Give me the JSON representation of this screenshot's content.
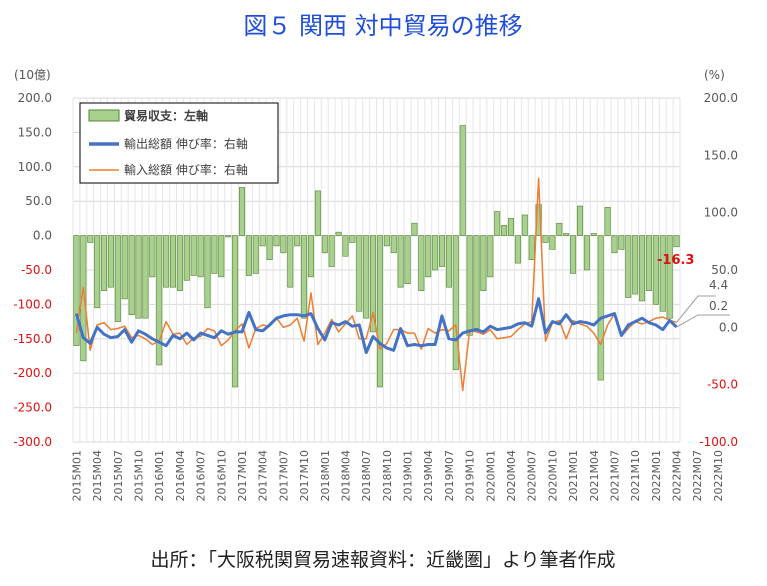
{
  "title": "図５ 関西 対中貿易の推移",
  "source": "出所：「大阪税関貿易速報資料：近畿圏」より筆者作成",
  "colors": {
    "bar_fill": "#a9d18e",
    "bar_stroke": "#548235",
    "export_line": "#4472c4",
    "import_line": "#ed7d31",
    "negative_label": "#e01010",
    "title": "#1f4fd8"
  },
  "chart_data": {
    "type": "bar+line",
    "title": "図５ 関西 対中貿易の推移",
    "left_axis": {
      "unit": "(10億)",
      "ylim": [
        -300,
        200
      ],
      "ticks": [
        "200.0",
        "150.0",
        "100.0",
        "50.0",
        "0.0",
        "-50.0",
        "-100.0",
        "-150.0",
        "-200.0",
        "-250.0",
        "-300.0"
      ]
    },
    "right_axis": {
      "unit": "(%)",
      "ylim": [
        -100,
        200
      ],
      "ticks": [
        "200.0",
        "150.0",
        "100.0",
        "50.0",
        "0.0",
        "-50.0",
        "-100.0"
      ]
    },
    "x_tick_labels": [
      "2015M01",
      "2015M04",
      "2015M07",
      "2015M10",
      "2016M01",
      "2016M04",
      "2016M07",
      "2016M10",
      "2017M01",
      "2017M04",
      "2017M07",
      "2017M10",
      "2018M01",
      "2018M04",
      "2018M07",
      "2018M10",
      "2019M01",
      "2019M04",
      "2019M07",
      "2019M10",
      "2020M01",
      "2020M04",
      "2020M07",
      "2020M10",
      "2021M01",
      "2021M04",
      "2021M07",
      "2021M10",
      "2022M01",
      "2022M04",
      "2022M07",
      "2022M10"
    ],
    "grid": true,
    "legend_placement": "top-left",
    "series": [
      {
        "name": "貿易収支：左軸",
        "type": "bar",
        "axis": "left",
        "values": [
          -160,
          -182,
          -10,
          -105,
          -80,
          -75,
          -125,
          -92,
          -115,
          -120,
          -120,
          -60,
          -188,
          -75,
          -75,
          -80,
          -65,
          -58,
          -60,
          -105,
          -55,
          -60,
          -2,
          -220,
          70,
          -58,
          -55,
          -15,
          -35,
          -15,
          -25,
          -75,
          -15,
          -120,
          -60,
          65,
          -25,
          -45,
          5,
          -30,
          -10,
          -110,
          -120,
          -140,
          -220,
          -15,
          -25,
          -75,
          -70,
          18,
          -80,
          -60,
          -50,
          -45,
          -75,
          -195,
          160,
          -145,
          -135,
          -80,
          -60,
          35,
          15,
          25,
          -40,
          30,
          -35,
          45,
          -10,
          -20,
          18,
          3,
          -55,
          43,
          -50,
          3,
          -210,
          41,
          -25,
          -20,
          -90,
          -85,
          -95,
          -80,
          -100,
          -110,
          -120,
          -16.3
        ]
      },
      {
        "name": "輸出総額 伸び率：右軸",
        "type": "line",
        "axis": "right",
        "values": [
          12,
          -9,
          -14,
          0,
          -6,
          -9,
          -8,
          -2,
          -13,
          -3,
          -6,
          -10,
          -13,
          -16,
          -7,
          -10,
          -5,
          -11,
          -5,
          -7,
          -9,
          -3,
          -6,
          -4,
          -4,
          13,
          -2,
          -3,
          2,
          8,
          10,
          11,
          11,
          10,
          12,
          -1,
          -11,
          4,
          2,
          5,
          1,
          2,
          -22,
          -8,
          -14,
          -18,
          -20,
          -1,
          -16,
          -15,
          -16,
          -15,
          -15,
          10,
          -10,
          -11,
          -5,
          -3,
          -2,
          -4,
          1,
          -2,
          -1,
          0,
          3,
          4,
          1,
          25,
          -5,
          5,
          3,
          11,
          3,
          5,
          4,
          2,
          8,
          10,
          12,
          -7,
          2,
          5,
          8,
          4,
          2,
          -2,
          6,
          0.2
        ]
      },
      {
        "name": "輸入総額 伸び率：右軸",
        "type": "line",
        "axis": "right",
        "values": [
          -5,
          35,
          -20,
          2,
          4,
          -2,
          -1,
          1,
          -9,
          -7,
          -10,
          -15,
          -12,
          5,
          -6,
          -5,
          -15,
          -9,
          -8,
          -1,
          -3,
          -16,
          -11,
          -3,
          3,
          -18,
          -1,
          2,
          1,
          8,
          0,
          2,
          8,
          -12,
          30,
          -15,
          -5,
          7,
          -4,
          3,
          10,
          -10,
          -10,
          13,
          -19,
          -14,
          -2,
          -2,
          -5,
          -5,
          -19,
          -1,
          -5,
          -2,
          -3,
          2,
          -55,
          -3,
          -4,
          -6,
          -2,
          -10,
          -9,
          -8,
          -2,
          3,
          5,
          130,
          -12,
          4,
          6,
          -10,
          6,
          3,
          1,
          -5,
          -15,
          2,
          12,
          -8,
          -1,
          5,
          3,
          5,
          8,
          9,
          6,
          4.4
        ]
      }
    ],
    "annotations": [
      {
        "text": "-16.3",
        "series": "貿易収支：左軸"
      },
      {
        "text": "4.4",
        "series": "輸入総額 伸び率：右軸"
      },
      {
        "text": "0.2",
        "series": "輸出総額 伸び率：右軸"
      }
    ]
  }
}
